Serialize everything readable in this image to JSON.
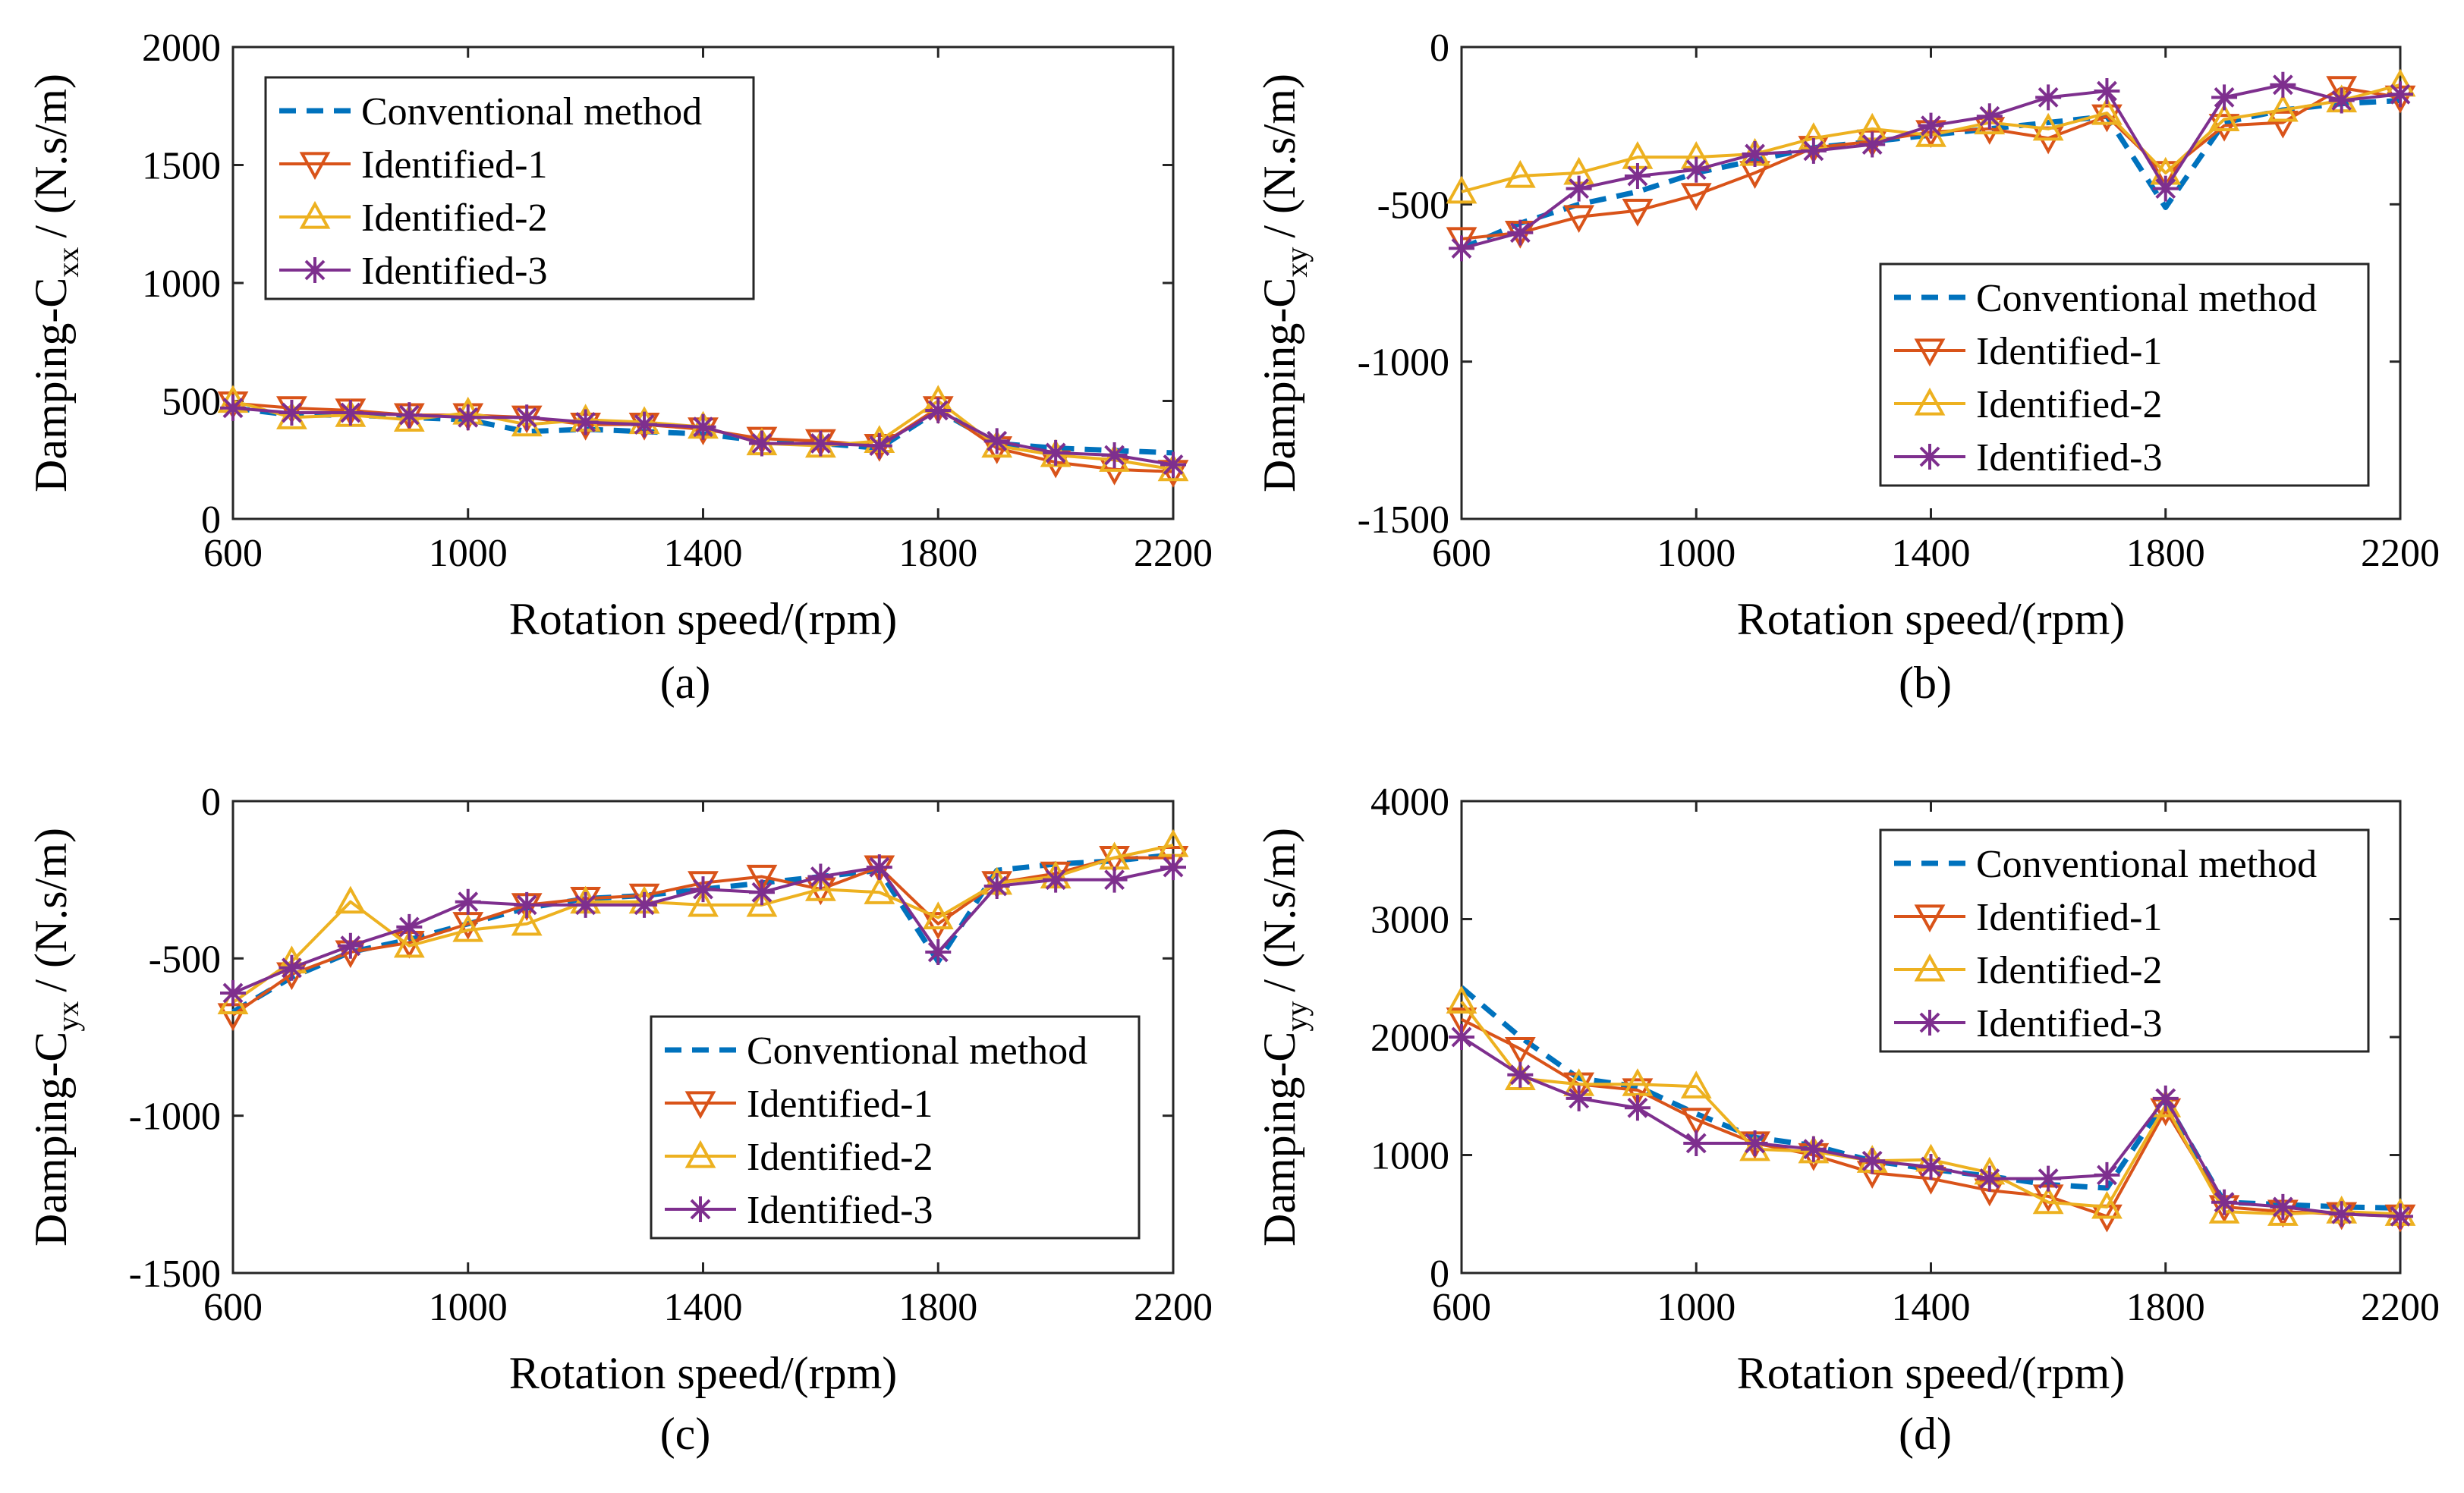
{
  "chart_data": [
    {
      "type": "line",
      "panel_label": "(a)",
      "xlabel": "Rotation speed/(rpm)",
      "ylabel_main": "Damping-C",
      "ylabel_sub": "xx",
      "ylabel_unit": "/ (N.s/m)",
      "xlim": [
        600,
        2200
      ],
      "ylim": [
        0,
        2000
      ],
      "xticks": [
        600,
        1000,
        1400,
        1800,
        2200
      ],
      "yticks": [
        0,
        500,
        1000,
        1500,
        2000
      ],
      "legend_position": "top-left",
      "x": [
        600,
        700,
        800,
        900,
        1000,
        1100,
        1200,
        1300,
        1400,
        1500,
        1600,
        1700,
        1800,
        1900,
        2000,
        2100,
        2200
      ],
      "series": [
        {
          "name": "Conventional method",
          "values": [
            470,
            440,
            440,
            430,
            420,
            370,
            380,
            370,
            360,
            330,
            320,
            300,
            460,
            320,
            300,
            290,
            280
          ]
        },
        {
          "name": "Identified-1",
          "values": [
            490,
            470,
            460,
            440,
            440,
            430,
            400,
            400,
            380,
            340,
            330,
            310,
            470,
            300,
            240,
            210,
            200
          ]
        },
        {
          "name": "Identified-2",
          "values": [
            500,
            430,
            440,
            420,
            450,
            400,
            420,
            410,
            390,
            320,
            310,
            330,
            500,
            310,
            270,
            250,
            210
          ]
        },
        {
          "name": "Identified-3",
          "values": [
            470,
            450,
            450,
            440,
            430,
            430,
            410,
            400,
            390,
            320,
            320,
            310,
            460,
            330,
            280,
            270,
            230
          ]
        }
      ]
    },
    {
      "type": "line",
      "panel_label": "(b)",
      "xlabel": "Rotation speed/(rpm)",
      "ylabel_main": "Damping-C",
      "ylabel_sub": "xy",
      "ylabel_unit": "/ (N.s/m)",
      "xlim": [
        600,
        2200
      ],
      "ylim": [
        -1500,
        0
      ],
      "xticks": [
        600,
        1000,
        1400,
        1800,
        2200
      ],
      "yticks": [
        -1500,
        -1000,
        -500,
        0
      ],
      "legend_position": "bottom-right",
      "x": [
        600,
        700,
        800,
        900,
        1000,
        1100,
        1200,
        1300,
        1400,
        1500,
        1600,
        1700,
        1800,
        1900,
        2000,
        2100,
        2200
      ],
      "series": [
        {
          "name": "Conventional method",
          "values": [
            -640,
            -560,
            -500,
            -460,
            -400,
            -360,
            -320,
            -300,
            -280,
            -260,
            -240,
            -220,
            -510,
            -240,
            -200,
            -180,
            -170
          ]
        },
        {
          "name": "Identified-1",
          "values": [
            -610,
            -590,
            -540,
            -520,
            -470,
            -400,
            -320,
            -300,
            -270,
            -260,
            -290,
            -220,
            -400,
            -250,
            -240,
            -130,
            -160
          ]
        },
        {
          "name": "Identified-2",
          "values": [
            -460,
            -410,
            -400,
            -350,
            -350,
            -340,
            -290,
            -260,
            -280,
            -240,
            -260,
            -210,
            -400,
            -230,
            -200,
            -170,
            -120
          ]
        },
        {
          "name": "Identified-3",
          "values": [
            -640,
            -590,
            -450,
            -410,
            -390,
            -340,
            -330,
            -310,
            -250,
            -220,
            -160,
            -140,
            -450,
            -160,
            -120,
            -170,
            -150
          ]
        }
      ]
    },
    {
      "type": "line",
      "panel_label": "(c)",
      "xlabel": "Rotation speed/(rpm)",
      "ylabel_main": "Damping-C",
      "ylabel_sub": "yx",
      "ylabel_unit": "/ (N.s/m)",
      "xlim": [
        600,
        2200
      ],
      "ylim": [
        -1500,
        0
      ],
      "xticks": [
        600,
        1000,
        1400,
        1800,
        2200
      ],
      "yticks": [
        -1500,
        -1000,
        -500,
        0
      ],
      "legend_position": "bottom-right",
      "x": [
        600,
        700,
        800,
        900,
        1000,
        1100,
        1200,
        1300,
        1400,
        1500,
        1600,
        1700,
        1800,
        1900,
        2000,
        2100,
        2200
      ],
      "series": [
        {
          "name": "Conventional method",
          "values": [
            -670,
            -560,
            -480,
            -440,
            -390,
            -340,
            -310,
            -300,
            -280,
            -260,
            -240,
            -220,
            -510,
            -220,
            -200,
            -190,
            -170
          ]
        },
        {
          "name": "Identified-1",
          "values": [
            -680,
            -550,
            -480,
            -450,
            -390,
            -330,
            -310,
            -300,
            -260,
            -240,
            -280,
            -210,
            -390,
            -260,
            -230,
            -180,
            -180
          ]
        },
        {
          "name": "Identified-2",
          "values": [
            -640,
            -510,
            -320,
            -460,
            -410,
            -390,
            -320,
            -320,
            -330,
            -330,
            -280,
            -290,
            -370,
            -260,
            -240,
            -180,
            -140
          ]
        },
        {
          "name": "Identified-3",
          "values": [
            -610,
            -530,
            -460,
            -400,
            -320,
            -330,
            -330,
            -330,
            -280,
            -290,
            -240,
            -210,
            -480,
            -270,
            -250,
            -250,
            -210
          ]
        }
      ]
    },
    {
      "type": "line",
      "panel_label": "(d)",
      "xlabel": "Rotation speed/(rpm)",
      "ylabel_main": "Damping-C",
      "ylabel_sub": "yy",
      "ylabel_unit": "/ (N.s/m)",
      "xlim": [
        600,
        2200
      ],
      "ylim": [
        0,
        4000
      ],
      "xticks": [
        600,
        1000,
        1400,
        1800,
        2200
      ],
      "yticks": [
        0,
        1000,
        2000,
        3000,
        4000
      ],
      "legend_position": "top-right",
      "x": [
        600,
        700,
        800,
        900,
        1000,
        1100,
        1200,
        1300,
        1400,
        1500,
        1600,
        1700,
        1800,
        1900,
        2000,
        2100,
        2200
      ],
      "series": [
        {
          "name": "Conventional method",
          "values": [
            2420,
            2000,
            1650,
            1580,
            1350,
            1150,
            1080,
            950,
            880,
            820,
            750,
            720,
            1460,
            600,
            580,
            560,
            550
          ]
        },
        {
          "name": "Identified-1",
          "values": [
            2150,
            1900,
            1600,
            1550,
            1300,
            1100,
            1000,
            850,
            800,
            700,
            650,
            480,
            1380,
            560,
            520,
            500,
            480
          ]
        },
        {
          "name": "Identified-2",
          "values": [
            2300,
            1650,
            1600,
            1600,
            1580,
            1050,
            1030,
            950,
            960,
            850,
            600,
            560,
            1420,
            520,
            500,
            520,
            500
          ]
        },
        {
          "name": "Identified-3",
          "values": [
            2000,
            1680,
            1480,
            1400,
            1100,
            1100,
            1050,
            950,
            900,
            800,
            800,
            830,
            1480,
            600,
            560,
            500,
            480
          ]
        }
      ]
    }
  ]
}
